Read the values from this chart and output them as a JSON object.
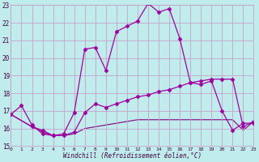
{
  "xlabel": "Windchill (Refroidissement éolien,°C)",
  "bg_color": "#c0ecec",
  "grid_color": "#c8a0c8",
  "line_color1": "#a000a0",
  "line_color2": "#a000a0",
  "line_color3": "#800080",
  "xlim": [
    0,
    23
  ],
  "ylim": [
    15,
    23
  ],
  "xticks": [
    0,
    1,
    2,
    3,
    4,
    5,
    6,
    7,
    8,
    9,
    10,
    11,
    12,
    13,
    14,
    15,
    16,
    17,
    18,
    19,
    20,
    21,
    22,
    23
  ],
  "yticks": [
    15,
    16,
    17,
    18,
    19,
    20,
    21,
    22,
    23
  ],
  "line1_x": [
    0,
    1,
    2,
    3,
    4,
    5,
    6,
    7,
    8,
    9,
    10,
    11,
    12,
    13,
    14,
    15,
    16,
    17,
    18,
    19,
    20,
    21,
    22,
    23
  ],
  "line1_y": [
    16.8,
    17.3,
    16.2,
    15.7,
    15.6,
    15.7,
    16.9,
    20.5,
    20.6,
    19.3,
    21.5,
    21.8,
    22.1,
    23.1,
    22.6,
    22.8,
    21.1,
    18.6,
    18.5,
    18.7,
    17.0,
    15.9,
    16.3,
    16.3
  ],
  "line2_x": [
    0,
    2,
    3,
    4,
    5,
    6,
    7,
    8,
    9,
    10,
    11,
    12,
    13,
    14,
    15,
    16,
    17,
    18,
    19,
    20,
    21,
    22,
    23
  ],
  "line2_y": [
    16.8,
    16.1,
    15.9,
    15.6,
    15.6,
    15.8,
    16.9,
    17.4,
    17.2,
    17.4,
    17.6,
    17.8,
    17.9,
    18.1,
    18.2,
    18.4,
    18.6,
    18.7,
    18.8,
    18.8,
    18.8,
    16.1,
    16.4
  ],
  "line3_x": [
    0,
    2,
    3,
    4,
    5,
    6,
    7,
    8,
    9,
    10,
    11,
    12,
    13,
    14,
    15,
    16,
    17,
    18,
    19,
    20,
    21,
    22,
    23
  ],
  "line3_y": [
    16.8,
    16.1,
    15.8,
    15.6,
    15.6,
    15.7,
    16.0,
    16.1,
    16.2,
    16.3,
    16.4,
    16.5,
    16.5,
    16.5,
    16.5,
    16.5,
    16.5,
    16.5,
    16.5,
    16.5,
    16.5,
    15.9,
    16.4
  ]
}
